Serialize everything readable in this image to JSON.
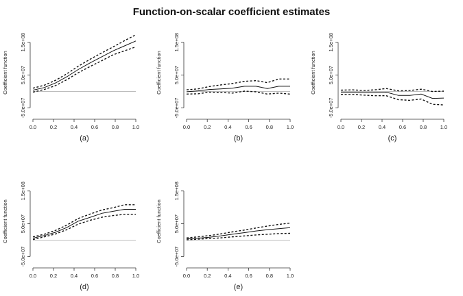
{
  "title": "Function-on-scalar coefficient estimates",
  "chart_data": [
    {
      "type": "line",
      "panel_label": "(a)",
      "ylabel": "Coefficient function",
      "xlim": [
        0,
        1
      ],
      "ylim": [
        -70000000,
        185000000
      ],
      "x_ticks": [
        "0.0",
        "0.2",
        "0.4",
        "0.6",
        "0.8",
        "1.0"
      ],
      "y_ticks": [
        "-5.0e+07",
        "5.0e+07",
        "1.5e+08"
      ],
      "y_tick_values": [
        -50000000,
        50000000,
        150000000
      ],
      "reference_line": 0,
      "x": [
        0,
        0.11,
        0.22,
        0.33,
        0.44,
        0.56,
        0.67,
        0.78,
        0.89,
        1
      ],
      "series": [
        {
          "style": "solid",
          "values": [
            4000000,
            12000000,
            26000000,
            45000000,
            67000000,
            88000000,
            106000000,
            124000000,
            139000000,
            154000000
          ]
        },
        {
          "style": "dashed",
          "values": [
            10000000,
            19000000,
            34000000,
            54000000,
            77000000,
            99000000,
            118000000,
            136000000,
            155000000,
            173000000
          ]
        },
        {
          "style": "dashed",
          "values": [
            -2000000,
            6000000,
            18000000,
            36000000,
            57000000,
            77000000,
            94000000,
            112000000,
            124000000,
            136000000
          ]
        }
      ]
    },
    {
      "type": "line",
      "panel_label": "(b)",
      "ylabel": "Coefficient function",
      "xlim": [
        0,
        1
      ],
      "ylim": [
        -70000000,
        185000000
      ],
      "x_ticks": [
        "0.0",
        "0.2",
        "0.4",
        "0.6",
        "0.8",
        "1.0"
      ],
      "y_ticks": [
        "-5.0e+07",
        "5.0e+07",
        "1.5e+08"
      ],
      "y_tick_values": [
        -50000000,
        50000000,
        150000000
      ],
      "reference_line": 0,
      "x": [
        0,
        0.11,
        0.22,
        0.33,
        0.44,
        0.56,
        0.67,
        0.78,
        0.89,
        1
      ],
      "series": [
        {
          "style": "solid",
          "values": [
            -1000000,
            2000000,
            6000000,
            8000000,
            10000000,
            16000000,
            16000000,
            9000000,
            16000000,
            16000000
          ]
        },
        {
          "style": "dashed",
          "values": [
            5000000,
            8000000,
            15000000,
            20000000,
            24000000,
            31000000,
            33000000,
            27000000,
            38000000,
            38000000
          ]
        },
        {
          "style": "dashed",
          "values": [
            -8000000,
            -7000000,
            -2000000,
            -3000000,
            -5000000,
            1000000,
            -1000000,
            -8000000,
            -5000000,
            -8000000
          ]
        }
      ]
    },
    {
      "type": "line",
      "panel_label": "(c)",
      "ylabel": "Coefficient function",
      "xlim": [
        0,
        1
      ],
      "ylim": [
        -70000000,
        185000000
      ],
      "x_ticks": [
        "0.0",
        "0.2",
        "0.4",
        "0.6",
        "0.8",
        "1.0"
      ],
      "y_ticks": [
        "-5.0e+07",
        "5.0e+07",
        "1.5e+08"
      ],
      "y_tick_values": [
        -50000000,
        50000000,
        150000000
      ],
      "reference_line": 0,
      "x": [
        0,
        0.11,
        0.22,
        0.33,
        0.44,
        0.56,
        0.67,
        0.78,
        0.89,
        1
      ],
      "series": [
        {
          "style": "solid",
          "values": [
            -3000000,
            -3000000,
            -4000000,
            -4000000,
            -2000000,
            -12000000,
            -12000000,
            -8000000,
            -21000000,
            -20000000
          ]
        },
        {
          "style": "dashed",
          "values": [
            4000000,
            5000000,
            3000000,
            5000000,
            9000000,
            2000000,
            3000000,
            7000000,
            0,
            1000000
          ]
        },
        {
          "style": "dashed",
          "values": [
            -9000000,
            -9000000,
            -11000000,
            -13000000,
            -13000000,
            -25000000,
            -27000000,
            -23000000,
            -39000000,
            -41000000
          ]
        }
      ]
    },
    {
      "type": "line",
      "panel_label": "(d)",
      "ylabel": "Coefficient function",
      "xlim": [
        0,
        1
      ],
      "ylim": [
        -70000000,
        185000000
      ],
      "x_ticks": [
        "0.0",
        "0.2",
        "0.4",
        "0.6",
        "0.8",
        "1.0"
      ],
      "y_ticks": [
        "-5.0e+07",
        "5.0e+07",
        "1.5e+08"
      ],
      "y_tick_values": [
        -50000000,
        50000000,
        150000000
      ],
      "reference_line": 0,
      "x": [
        0,
        0.11,
        0.22,
        0.33,
        0.44,
        0.56,
        0.67,
        0.78,
        0.89,
        1
      ],
      "series": [
        {
          "style": "solid",
          "values": [
            6000000,
            14000000,
            24000000,
            39000000,
            58000000,
            70000000,
            82000000,
            88000000,
            94000000,
            94000000
          ]
        },
        {
          "style": "dashed",
          "values": [
            10000000,
            18000000,
            30000000,
            46000000,
            66000000,
            80000000,
            92000000,
            99000000,
            108000000,
            108000000
          ]
        },
        {
          "style": "dashed",
          "values": [
            2000000,
            10000000,
            19000000,
            32000000,
            49000000,
            61000000,
            70000000,
            75000000,
            79000000,
            79000000
          ]
        }
      ]
    },
    {
      "type": "line",
      "panel_label": "(e)",
      "ylabel": "Coefficient function",
      "xlim": [
        0,
        1
      ],
      "ylim": [
        -70000000,
        185000000
      ],
      "x_ticks": [
        "0.0",
        "0.2",
        "0.4",
        "0.6",
        "0.8",
        "1.0"
      ],
      "y_ticks": [
        "-5.0e+07",
        "5.0e+07",
        "1.5e+08"
      ],
      "y_tick_values": [
        -50000000,
        50000000,
        150000000
      ],
      "reference_line": 0,
      "x": [
        0,
        0.11,
        0.22,
        0.33,
        0.44,
        0.56,
        0.67,
        0.78,
        0.89,
        1
      ],
      "series": [
        {
          "style": "solid",
          "values": [
            4000000,
            6000000,
            9000000,
            13000000,
            18000000,
            23000000,
            28000000,
            32000000,
            35000000,
            38000000
          ]
        },
        {
          "style": "dashed",
          "values": [
            7000000,
            10000000,
            14000000,
            19000000,
            25000000,
            31000000,
            37000000,
            43000000,
            48000000,
            52000000
          ]
        },
        {
          "style": "dashed",
          "values": [
            1000000,
            3000000,
            5000000,
            7000000,
            10000000,
            13000000,
            16000000,
            18000000,
            20000000,
            21000000
          ]
        }
      ]
    }
  ]
}
